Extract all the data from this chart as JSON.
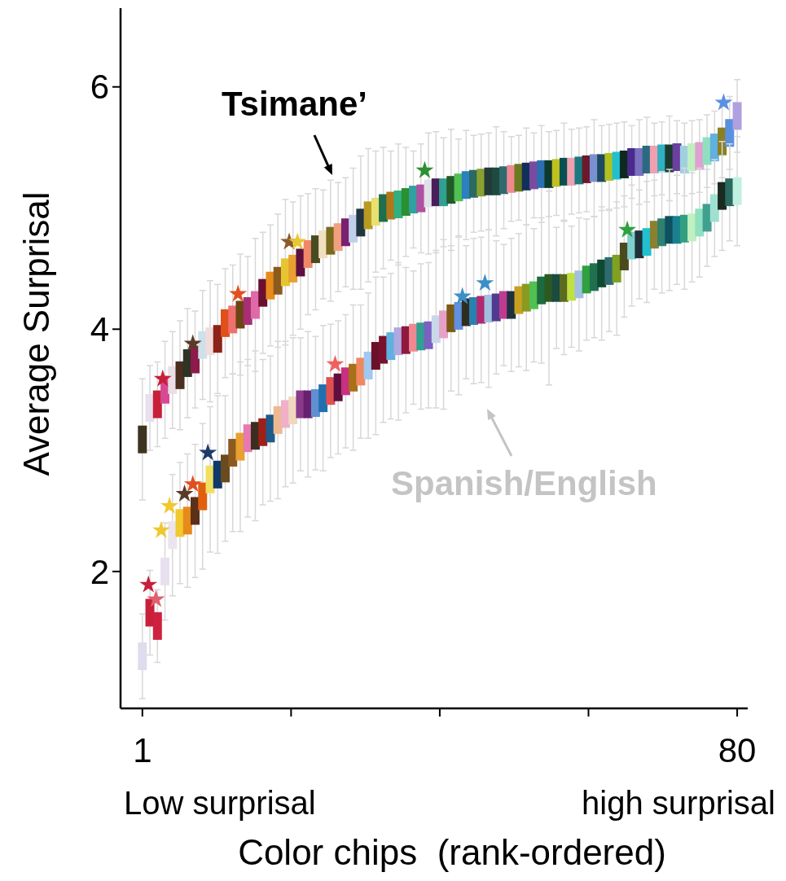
{
  "chart_data": {
    "type": "scatter",
    "ylabel": "Average Surprisal",
    "xlabel": "Color chips  (rank-ordered)",
    "annotations": [
      "Low surprisal",
      "high surprisal"
    ],
    "xlim": [
      -1.9,
      81.4
    ],
    "ylim": [
      0.87,
      6.65
    ],
    "xticks": [
      {
        "value": 1,
        "label": "1"
      },
      {
        "value": 20.75,
        "label": null
      },
      {
        "value": 40.5,
        "label": null
      },
      {
        "value": 60.25,
        "label": null
      },
      {
        "value": 80,
        "label": "80"
      }
    ],
    "yticks": [
      2,
      4,
      6
    ],
    "grid": false,
    "x": [
      1,
      2,
      3,
      4,
      5,
      6,
      7,
      8,
      9,
      10,
      11,
      12,
      13,
      14,
      15,
      16,
      17,
      18,
      19,
      20,
      21,
      22,
      23,
      24,
      25,
      26,
      27,
      28,
      29,
      30,
      31,
      32,
      33,
      34,
      35,
      36,
      37,
      38,
      39,
      40,
      41,
      42,
      43,
      44,
      45,
      46,
      47,
      48,
      49,
      50,
      51,
      52,
      53,
      54,
      55,
      56,
      57,
      58,
      59,
      60,
      61,
      62,
      63,
      64,
      65,
      66,
      67,
      68,
      69,
      70,
      71,
      72,
      73,
      74,
      75,
      76,
      77,
      78,
      79,
      80
    ],
    "series": [
      {
        "name": "Tsimane’",
        "marker": "square",
        "values": [
          3.09,
          3.35,
          3.38,
          3.5,
          3.58,
          3.62,
          3.72,
          3.75,
          3.87,
          3.9,
          3.92,
          4.05,
          4.08,
          4.12,
          4.15,
          4.2,
          4.3,
          4.36,
          4.4,
          4.47,
          4.5,
          4.55,
          4.62,
          4.66,
          4.7,
          4.73,
          4.76,
          4.8,
          4.83,
          4.88,
          4.94,
          4.97,
          5.0,
          5.02,
          5.03,
          5.05,
          5.07,
          5.08,
          5.12,
          5.13,
          5.13,
          5.15,
          5.17,
          5.19,
          5.2,
          5.21,
          5.22,
          5.22,
          5.23,
          5.24,
          5.25,
          5.26,
          5.27,
          5.28,
          5.28,
          5.29,
          5.3,
          5.3,
          5.31,
          5.32,
          5.33,
          5.33,
          5.34,
          5.35,
          5.36,
          5.38,
          5.38,
          5.4,
          5.4,
          5.41,
          5.41,
          5.42,
          5.4,
          5.42,
          5.43,
          5.47,
          5.5,
          5.55,
          5.62,
          5.76
        ],
        "errors": [
          0.5,
          0.35,
          0.35,
          0.4,
          0.4,
          0.45,
          0.45,
          0.4,
          0.45,
          0.5,
          0.45,
          0.45,
          0.45,
          0.5,
          0.45,
          0.55,
          0.5,
          0.5,
          0.55,
          0.6,
          0.55,
          0.55,
          0.5,
          0.5,
          0.45,
          0.5,
          0.45,
          0.45,
          0.5,
          0.55,
          0.55,
          0.5,
          0.5,
          0.45,
          0.5,
          0.45,
          0.4,
          0.45,
          0.5,
          0.5,
          0.45,
          0.5,
          0.4,
          0.45,
          0.4,
          0.4,
          0.4,
          0.45,
          0.4,
          0.35,
          0.35,
          0.4,
          0.35,
          0.4,
          0.35,
          0.35,
          0.4,
          0.35,
          0.35,
          0.35,
          0.4,
          0.35,
          0.35,
          0.35,
          0.35,
          0.3,
          0.35,
          0.35,
          0.3,
          0.3,
          0.35,
          0.3,
          0.3,
          0.3,
          0.3,
          0.3,
          0.3,
          0.3,
          0.3,
          0.3
        ],
        "colors": [
          "#3d3320",
          "#e8e0ee",
          "#c8203a",
          "#d64a94",
          "#eadfe6",
          "#4a2e1e",
          "#2e3326",
          "#8c1a4a",
          "#cfe0ea",
          "#f0dcdc",
          "#8c2318",
          "#e0501a",
          "#f07070",
          "#6b4514",
          "#a83072",
          "#e06aa8",
          "#6b0f30",
          "#e88a1a",
          "#8b5a1e",
          "#e8c430",
          "#e8a030",
          "#5e0f40",
          "#f08868",
          "#4a4a20",
          "#f0e0c0",
          "#7a6a1e",
          "#f0a080",
          "#7a2070",
          "#c0d0ea",
          "#1f3540",
          "#b89a20",
          "#e8e070",
          "#1e6e50",
          "#b07818",
          "#30b080",
          "#2a9030",
          "#30a0a0",
          "#b050a0",
          "#e0e0e8",
          "#4a1e5a",
          "#30a090",
          "#225a2a",
          "#50c050",
          "#2a80c0",
          "#2a6a60",
          "#8aa030",
          "#223a38",
          "#1e4a40",
          "#2e6a70",
          "#f08890",
          "#6a7a1e",
          "#10305a",
          "#7a4aa0",
          "#2a70b0",
          "#0e3a2a",
          "#c0c020",
          "#0a5050",
          "#f0a0b0",
          "#1a7a80",
          "#6a1a2a",
          "#7a90d0",
          "#1e4a60",
          "#b0c020",
          "#20c0d0",
          "#0e2a20",
          "#4a2a8a",
          "#7a70c0",
          "#2a6a80",
          "#f0a0b0",
          "#30b0c0",
          "#1a3a30",
          "#6a40a0",
          "#a0d0e0",
          "#c0f0c0",
          "#e0a0d0",
          "#90e0c0",
          "#60b0e0",
          "#8a8020",
          "#5a90e0",
          "#b0a0e0"
        ]
      },
      {
        "name": "Spanish/English",
        "marker": "square",
        "values": [
          1.3,
          1.66,
          1.55,
          2.0,
          2.3,
          2.4,
          2.42,
          2.5,
          2.62,
          2.76,
          2.8,
          2.85,
          2.98,
          3.03,
          3.1,
          3.12,
          3.15,
          3.18,
          3.25,
          3.3,
          3.33,
          3.38,
          3.38,
          3.39,
          3.43,
          3.49,
          3.52,
          3.57,
          3.6,
          3.65,
          3.7,
          3.78,
          3.83,
          3.86,
          3.9,
          3.91,
          3.93,
          3.94,
          3.95,
          4.0,
          4.04,
          4.09,
          4.11,
          4.14,
          4.15,
          4.16,
          4.17,
          4.18,
          4.2,
          4.2,
          4.24,
          4.26,
          4.28,
          4.32,
          4.34,
          4.34,
          4.34,
          4.35,
          4.37,
          4.41,
          4.43,
          4.46,
          4.48,
          4.5,
          4.6,
          4.69,
          4.7,
          4.72,
          4.78,
          4.8,
          4.82,
          4.82,
          4.83,
          4.84,
          4.88,
          4.92,
          5.0,
          5.1,
          5.13,
          5.14
        ],
        "errors": [
          0.35,
          0.35,
          0.3,
          0.4,
          0.5,
          0.5,
          0.55,
          0.55,
          0.6,
          0.6,
          0.65,
          0.6,
          0.65,
          0.7,
          0.65,
          0.7,
          0.6,
          0.6,
          0.65,
          0.6,
          0.6,
          0.55,
          0.6,
          0.55,
          0.6,
          0.55,
          0.55,
          0.55,
          0.6,
          0.55,
          0.6,
          0.65,
          0.6,
          0.6,
          0.65,
          0.6,
          0.55,
          0.6,
          0.6,
          0.65,
          0.7,
          0.6,
          0.65,
          0.55,
          0.6,
          0.6,
          0.65,
          0.55,
          0.5,
          0.55,
          0.55,
          0.6,
          0.55,
          0.6,
          0.8,
          0.5,
          0.55,
          0.5,
          0.55,
          0.5,
          0.5,
          0.55,
          0.5,
          0.55,
          0.5,
          0.5,
          0.45,
          0.5,
          0.45,
          0.5,
          0.5,
          0.45,
          0.5,
          0.45,
          0.45,
          0.4,
          0.4,
          0.45,
          0.4,
          0.45
        ],
        "colors": [
          "#e0dcee",
          "#c8203a",
          "#d02040",
          "#e8e0ee",
          "#ece4ec",
          "#f0c830",
          "#e88a1a",
          "#5a3018",
          "#e06010",
          "#f0e060",
          "#0e3a6a",
          "#6a4a1e",
          "#8b5a1e",
          "#e8a030",
          "#e878b0",
          "#3a2e1e",
          "#a02018",
          "#1e5a8a",
          "#f0b890",
          "#f0b0c8",
          "#f0d8c0",
          "#8a3a8a",
          "#6a2070",
          "#6090d0",
          "#2070b0",
          "#e05050",
          "#5e0f40",
          "#c83080",
          "#a87018",
          "#f08860",
          "#a0c8f0",
          "#6a1028",
          "#7a1030",
          "#60b0e0",
          "#b0a8e0",
          "#901840",
          "#f08890",
          "#30a090",
          "#7a60c0",
          "#c8d8e8",
          "#e8a0c8",
          "#7a5a14",
          "#6090e0",
          "#2e2e20",
          "#2a80b0",
          "#b02a70",
          "#a0c0e0",
          "#503a90",
          "#c03a90",
          "#1e3040",
          "#c8a020",
          "#8a9a20",
          "#50c050",
          "#1e6a40",
          "#2a5a20",
          "#1a4a40",
          "#5a6a20",
          "#c0e040",
          "#a0c0e0",
          "#30a040",
          "#207050",
          "#0e4a30",
          "#306a70",
          "#80a020",
          "#4a4a1e",
          "#80d0d0",
          "#20303a",
          "#20c0d0",
          "#8a8030",
          "#308070",
          "#0e5060",
          "#1a8090",
          "#30a080",
          "#c0f0c0",
          "#90e0c0",
          "#40a090",
          "#a0e0d0",
          "#1a2a20",
          "#2a6a60",
          "#c0f0e0"
        ]
      },
      {
        "marker": "star",
        "x": [
          3.7,
          7.7,
          13.7,
          20.5,
          21.6,
          38.5,
          78.2
        ],
        "values": [
          3.59,
          3.88,
          4.29,
          4.72,
          4.72,
          5.31,
          5.87
        ],
        "colors": [
          "#c8203a",
          "#5a3a28",
          "#e05020",
          "#8b5a2a",
          "#e8c830",
          "#2a9030",
          "#5a90e0"
        ]
      },
      {
        "marker": "star",
        "x": [
          1.8,
          2.8,
          3.5,
          4.6,
          6.6,
          7.7,
          9.7,
          26.6,
          43.5,
          46.5,
          65.4
        ],
        "values": [
          1.89,
          1.77,
          2.34,
          2.54,
          2.64,
          2.72,
          2.98,
          3.71,
          4.27,
          4.38,
          4.82
        ],
        "colors": [
          "#c8203a",
          "#e06070",
          "#f0c830",
          "#f0c830",
          "#5a3a28",
          "#e05020",
          "#1e3a6a",
          "#f06060",
          "#3a90c8",
          "#3a90c8",
          "#30a040"
        ]
      }
    ]
  }
}
